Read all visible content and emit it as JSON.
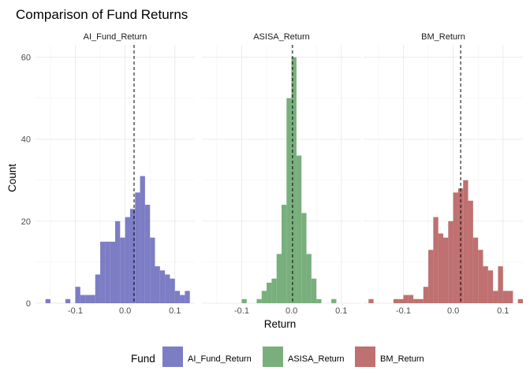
{
  "chart_data": {
    "type": "bar",
    "title": "Comparison of Fund Returns",
    "xlabel": "Return",
    "ylabel": "Count",
    "xlim": [
      -0.18,
      0.14
    ],
    "ylim": [
      0,
      63
    ],
    "x_ticks": [
      -0.1,
      0.0,
      0.1
    ],
    "x_tick_labels": [
      "-0.1",
      "0.0",
      "0.1"
    ],
    "y_ticks": [
      0,
      20,
      40,
      60
    ],
    "y_tick_labels": [
      "0",
      "20",
      "40",
      "60"
    ],
    "bin_width": 0.01,
    "legend_title": "Fund",
    "legend_position": "bottom",
    "grid": true,
    "panels": [
      {
        "name": "AI_Fund_Return",
        "color": "#6F6FBF",
        "mean_line": 0.018,
        "bars": [
          {
            "x": -0.155,
            "y": 1
          },
          {
            "x": -0.115,
            "y": 1
          },
          {
            "x": -0.095,
            "y": 4
          },
          {
            "x": -0.085,
            "y": 2
          },
          {
            "x": -0.075,
            "y": 2
          },
          {
            "x": -0.065,
            "y": 2
          },
          {
            "x": -0.055,
            "y": 7
          },
          {
            "x": -0.045,
            "y": 15
          },
          {
            "x": -0.035,
            "y": 15
          },
          {
            "x": -0.025,
            "y": 15
          },
          {
            "x": -0.015,
            "y": 20
          },
          {
            "x": -0.005,
            "y": 16
          },
          {
            "x": 0.005,
            "y": 21
          },
          {
            "x": 0.015,
            "y": 23
          },
          {
            "x": 0.025,
            "y": 27
          },
          {
            "x": 0.035,
            "y": 31
          },
          {
            "x": 0.045,
            "y": 24
          },
          {
            "x": 0.055,
            "y": 16
          },
          {
            "x": 0.065,
            "y": 9
          },
          {
            "x": 0.075,
            "y": 8
          },
          {
            "x": 0.085,
            "y": 7
          },
          {
            "x": 0.095,
            "y": 6
          },
          {
            "x": 0.105,
            "y": 3
          },
          {
            "x": 0.115,
            "y": 2
          },
          {
            "x": 0.125,
            "y": 3
          }
        ]
      },
      {
        "name": "ASISA_Return",
        "color": "#6AA66F",
        "mean_line": 0.002,
        "bars": [
          {
            "x": -0.095,
            "y": 1
          },
          {
            "x": -0.065,
            "y": 1
          },
          {
            "x": -0.055,
            "y": 3
          },
          {
            "x": -0.045,
            "y": 5
          },
          {
            "x": -0.035,
            "y": 6
          },
          {
            "x": -0.025,
            "y": 12
          },
          {
            "x": -0.015,
            "y": 24
          },
          {
            "x": -0.005,
            "y": 50
          },
          {
            "x": 0.005,
            "y": 60
          },
          {
            "x": 0.015,
            "y": 36
          },
          {
            "x": 0.025,
            "y": 22
          },
          {
            "x": 0.035,
            "y": 12
          },
          {
            "x": 0.045,
            "y": 6
          },
          {
            "x": 0.055,
            "y": 1
          },
          {
            "x": 0.085,
            "y": 1
          }
        ]
      },
      {
        "name": "BM_Return",
        "color": "#B86060",
        "mean_line": 0.015,
        "bars": [
          {
            "x": -0.165,
            "y": 1
          },
          {
            "x": -0.115,
            "y": 1
          },
          {
            "x": -0.105,
            "y": 1
          },
          {
            "x": -0.095,
            "y": 2
          },
          {
            "x": -0.085,
            "y": 2
          },
          {
            "x": -0.075,
            "y": 1
          },
          {
            "x": -0.065,
            "y": 1
          },
          {
            "x": -0.055,
            "y": 4
          },
          {
            "x": -0.045,
            "y": 13
          },
          {
            "x": -0.035,
            "y": 21
          },
          {
            "x": -0.025,
            "y": 17
          },
          {
            "x": -0.015,
            "y": 16
          },
          {
            "x": -0.005,
            "y": 20
          },
          {
            "x": 0.005,
            "y": 27
          },
          {
            "x": 0.015,
            "y": 28
          },
          {
            "x": 0.025,
            "y": 30
          },
          {
            "x": 0.035,
            "y": 25
          },
          {
            "x": 0.045,
            "y": 16
          },
          {
            "x": 0.055,
            "y": 13
          },
          {
            "x": 0.065,
            "y": 9
          },
          {
            "x": 0.075,
            "y": 8
          },
          {
            "x": 0.085,
            "y": 3
          },
          {
            "x": 0.095,
            "y": 9
          },
          {
            "x": 0.105,
            "y": 3
          },
          {
            "x": 0.115,
            "y": 3
          },
          {
            "x": 0.135,
            "y": 1
          }
        ]
      }
    ]
  }
}
